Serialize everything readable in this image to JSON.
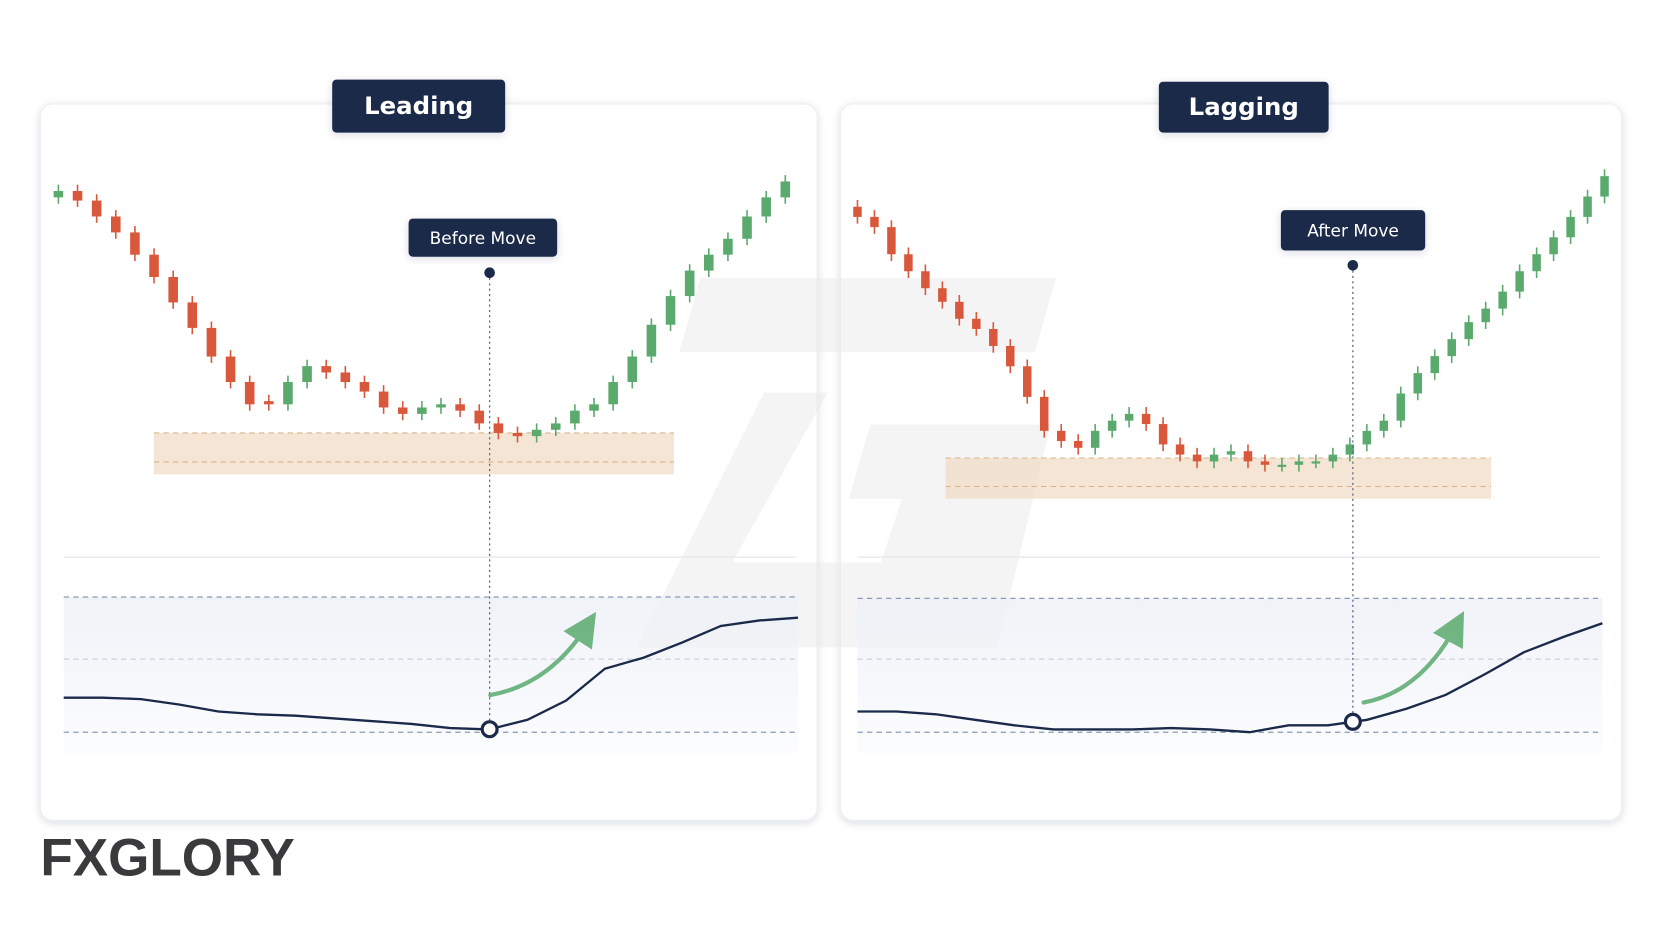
{
  "logo": "FXGLORY",
  "chart_data": [
    {
      "type": "candlestick",
      "title": "Leading",
      "annotation": "Before Move",
      "ylim": [
        0,
        100
      ],
      "open": [
        88,
        90,
        87,
        82,
        77,
        70,
        63,
        55,
        47,
        38,
        30,
        24,
        23,
        30,
        35,
        33,
        30,
        27,
        22,
        20,
        22,
        23,
        21,
        17,
        14,
        13,
        15,
        17,
        21,
        23,
        30,
        38,
        48,
        57,
        65,
        70,
        75,
        82,
        88
      ],
      "high": [
        92,
        92,
        89,
        84,
        79,
        72,
        65,
        57,
        49,
        40,
        32,
        26,
        32,
        37,
        37,
        35,
        32,
        29,
        24,
        24,
        25,
        25,
        23,
        19,
        16,
        17,
        19,
        23,
        25,
        32,
        40,
        50,
        59,
        67,
        72,
        77,
        84,
        90,
        95
      ],
      "low": [
        86,
        85,
        80,
        75,
        68,
        61,
        53,
        45,
        36,
        28,
        21,
        21,
        21,
        28,
        31,
        28,
        25,
        20,
        18,
        18,
        20,
        19,
        15,
        12,
        11,
        11,
        13,
        15,
        19,
        21,
        28,
        36,
        46,
        55,
        63,
        68,
        73,
        80,
        86
      ],
      "close": [
        90,
        87,
        82,
        77,
        70,
        63,
        55,
        47,
        38,
        30,
        23,
        23,
        30,
        35,
        33,
        30,
        27,
        22,
        20,
        22,
        23,
        21,
        17,
        14,
        13,
        15,
        17,
        21,
        23,
        30,
        38,
        48,
        57,
        65,
        70,
        75,
        82,
        88,
        93
      ],
      "zone": [
        1,
        14
      ],
      "indicator": {
        "ylim": [
          0,
          100
        ],
        "levels": [
          0,
          53,
          98
        ],
        "values": [
          25,
          25,
          24,
          20,
          15,
          13,
          12,
          10,
          8,
          6,
          3,
          2,
          9,
          23,
          46,
          54,
          65,
          77,
          81,
          83
        ]
      }
    },
    {
      "type": "candlestick",
      "title": "Lagging",
      "annotation": "After Move",
      "ylim": [
        0,
        100
      ],
      "open": [
        86,
        83,
        80,
        72,
        67,
        62,
        58,
        53,
        50,
        45,
        39,
        30,
        20,
        17,
        15,
        20,
        23,
        25,
        22,
        16,
        13,
        11,
        13,
        14,
        11,
        10,
        10,
        11,
        11,
        13,
        16,
        20,
        23,
        31,
        37,
        42,
        47,
        52,
        56,
        61,
        67,
        72,
        77,
        83,
        89
      ],
      "high": [
        88,
        85,
        82,
        74,
        69,
        64,
        60,
        55,
        52,
        47,
        41,
        32,
        22,
        19,
        22,
        25,
        27,
        27,
        24,
        18,
        15,
        15,
        16,
        16,
        13,
        12,
        13,
        13,
        15,
        18,
        22,
        25,
        33,
        39,
        44,
        49,
        54,
        58,
        63,
        69,
        74,
        79,
        85,
        91,
        97
      ],
      "low": [
        81,
        78,
        70,
        65,
        60,
        56,
        51,
        48,
        43,
        37,
        28,
        18,
        15,
        13,
        13,
        18,
        21,
        20,
        14,
        11,
        9,
        9,
        11,
        9,
        8,
        8,
        8,
        9,
        9,
        11,
        14,
        18,
        21,
        29,
        35,
        40,
        45,
        50,
        54,
        59,
        65,
        70,
        75,
        81,
        87
      ],
      "close": [
        83,
        80,
        72,
        67,
        62,
        58,
        53,
        50,
        45,
        39,
        30,
        20,
        17,
        15,
        20,
        23,
        25,
        22,
        16,
        13,
        11,
        13,
        14,
        11,
        10,
        10,
        11,
        11,
        13,
        16,
        20,
        23,
        31,
        37,
        42,
        47,
        52,
        56,
        61,
        67,
        72,
        77,
        83,
        89,
        95
      ],
      "zone": [
        0,
        12
      ],
      "indicator": {
        "ylim": [
          0,
          100
        ],
        "levels": [
          0,
          53,
          97
        ],
        "values": [
          15,
          15,
          13,
          9,
          5,
          2,
          2,
          2,
          3,
          2,
          0,
          5,
          5,
          9,
          17,
          27,
          42,
          58,
          69,
          79
        ]
      }
    }
  ]
}
